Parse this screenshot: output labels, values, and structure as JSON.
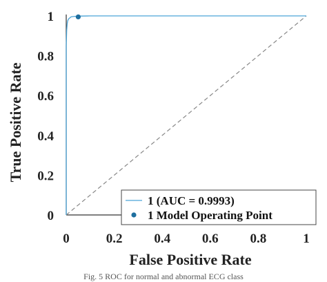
{
  "chart_data": {
    "type": "line",
    "xlabel": "False Positive Rate",
    "ylabel": "True Positive Rate",
    "xlim": [
      0,
      1
    ],
    "ylim": [
      0,
      1
    ],
    "x_ticks": [
      "0",
      "0.2",
      "0.4",
      "0.6",
      "0.8",
      "1"
    ],
    "y_ticks": [
      "0",
      "0.2",
      "0.4",
      "0.6",
      "0.8",
      "1"
    ],
    "grid": false,
    "legend_position": "bottom-right",
    "series": [
      {
        "name": "1 (AUC = 0.9993)",
        "color": "#4aa3d6",
        "x": [
          0,
          0.0,
          0.002,
          0.004,
          0.006,
          0.01,
          0.015,
          0.02,
          0.03,
          0.05,
          0.1,
          1
        ],
        "y": [
          0,
          0.85,
          0.93,
          0.96,
          0.975,
          0.985,
          0.99,
          0.995,
          0.997,
          0.999,
          1.0,
          1.0
        ]
      },
      {
        "name": "1 Model Operating Point",
        "color": "#1f6f9f",
        "type": "scatter",
        "x": [
          0.05
        ],
        "y": [
          0.995
        ]
      }
    ],
    "reference_line": {
      "x": [
        0,
        1
      ],
      "y": [
        0,
        1
      ],
      "style": "dashed",
      "color": "#888888"
    }
  },
  "caption": "Fig. 5 ROC for normal and abnormal ECG class"
}
